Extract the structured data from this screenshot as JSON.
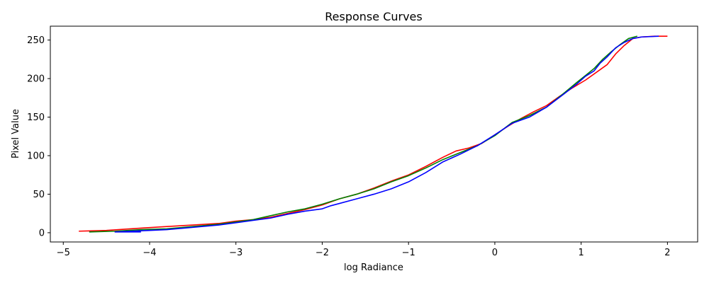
{
  "chart_data": {
    "type": "line",
    "title": "Response Curves",
    "xlabel": "log Radiance",
    "ylabel": "Pixel Value",
    "xlim": [
      -5.15,
      2.35
    ],
    "ylim": [
      -12,
      268
    ],
    "xticks": [
      -5,
      -4,
      -3,
      -2,
      -1,
      0,
      1,
      2
    ],
    "xtick_labels": [
      "−5",
      "−4",
      "−3",
      "−2",
      "−1",
      "0",
      "1",
      "2"
    ],
    "yticks": [
      0,
      50,
      100,
      150,
      200,
      250
    ],
    "ytick_labels": [
      "0",
      "50",
      "100",
      "150",
      "200",
      "250"
    ],
    "grid": false,
    "series": [
      {
        "color": "#ff0000",
        "x": [
          -4.82,
          -4.5,
          -4.1,
          -3.8,
          -3.5,
          -3.2,
          -3.0,
          -2.8,
          -2.6,
          -2.4,
          -2.2,
          -2.0,
          -1.8,
          -1.6,
          -1.4,
          -1.2,
          -1.0,
          -0.8,
          -0.6,
          -0.45,
          -0.3,
          -0.15,
          0.0,
          0.15,
          0.3,
          0.45,
          0.6,
          0.75,
          0.9,
          1.05,
          1.2,
          1.3,
          1.4,
          1.5,
          1.6,
          1.7,
          1.85,
          2.0
        ],
        "y": [
          2,
          3,
          6,
          8,
          10,
          12,
          15,
          17,
          20,
          25,
          30,
          36,
          44,
          50,
          58,
          67,
          75,
          86,
          98,
          106,
          110,
          116,
          127,
          138,
          148,
          157,
          165,
          177,
          188,
          198,
          210,
          218,
          232,
          243,
          252,
          254,
          255,
          255
        ]
      },
      {
        "color": "#008000",
        "x": [
          -4.7,
          -4.4,
          -4.1,
          -3.8,
          -3.5,
          -3.2,
          -3.0,
          -2.8,
          -2.6,
          -2.4,
          -2.2,
          -2.0,
          -1.8,
          -1.6,
          -1.4,
          -1.2,
          -1.0,
          -0.8,
          -0.6,
          -0.4,
          -0.2,
          0.0,
          0.2,
          0.4,
          0.6,
          0.8,
          0.95,
          1.05,
          1.15,
          1.25,
          1.35,
          1.45,
          1.55,
          1.65
        ],
        "y": [
          1,
          2,
          4,
          5,
          8,
          11,
          14,
          17,
          22,
          27,
          31,
          37,
          44,
          50,
          57,
          66,
          74,
          84,
          95,
          104,
          113,
          126,
          143,
          152,
          163,
          181,
          195,
          204,
          213,
          225,
          235,
          244,
          252,
          255
        ]
      },
      {
        "color": "#0000ff",
        "x": [
          -4.1,
          -4.4,
          -4.0,
          -3.8,
          -3.5,
          -3.2,
          -3.0,
          -2.8,
          -2.6,
          -2.4,
          -2.2,
          -2.0,
          -1.9,
          -1.8,
          -1.6,
          -1.4,
          -1.2,
          -1.0,
          -0.8,
          -0.6,
          -0.4,
          -0.2,
          0.0,
          0.2,
          0.4,
          0.6,
          0.8,
          0.95,
          1.05,
          1.15,
          1.22,
          1.3,
          1.4,
          1.5,
          1.6,
          1.7,
          1.9
        ],
        "y": [
          1,
          1,
          3,
          4,
          7,
          10,
          13,
          16,
          19,
          24,
          28,
          31,
          35,
          38,
          44,
          50,
          57,
          66,
          78,
          92,
          102,
          113,
          127,
          142,
          150,
          163,
          180,
          193,
          203,
          210,
          220,
          228,
          240,
          247,
          252,
          254,
          255
        ]
      }
    ]
  }
}
